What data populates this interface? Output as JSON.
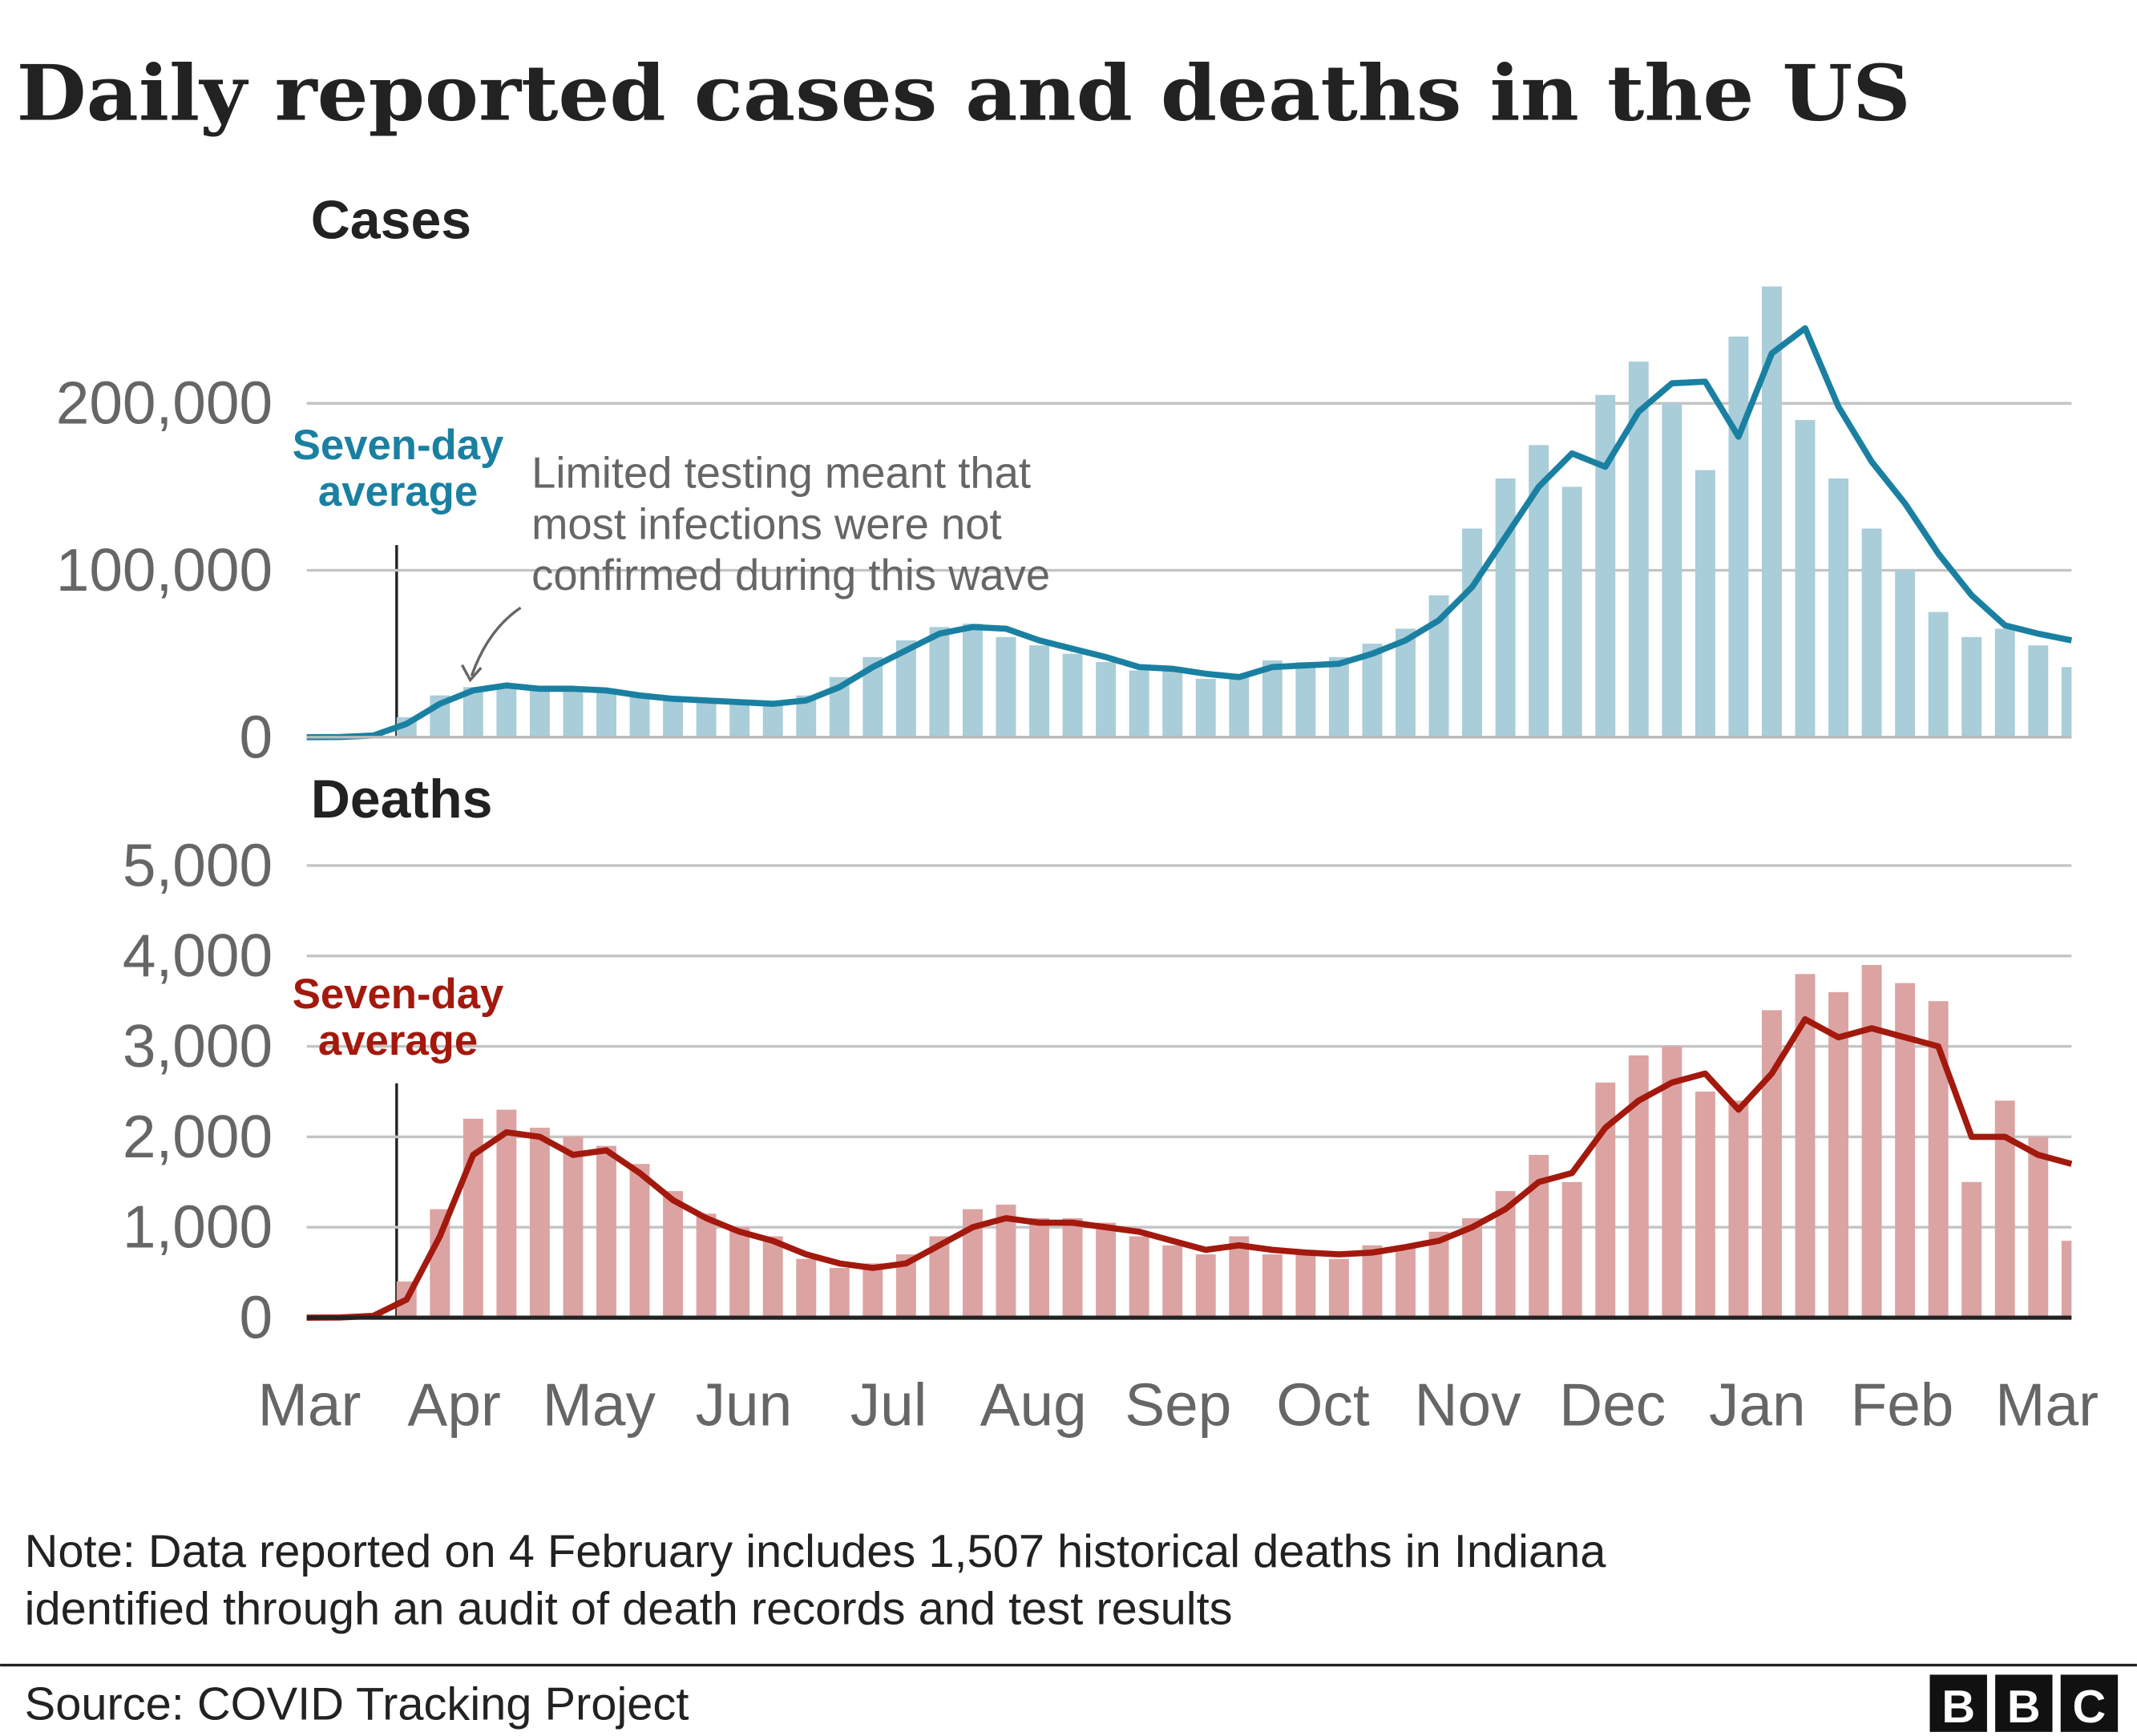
{
  "title": "Daily reported cases and deaths in the US",
  "chart_data": [
    {
      "type": "bar_line",
      "title": "Cases",
      "ylim": [
        0,
        300000
      ],
      "yticks": [
        0,
        {
          "value": 100000,
          "label": "100,000"
        },
        {
          "value": 200000,
          "label": "200,000"
        }
      ],
      "grid": true,
      "series": [
        {
          "type": "bar",
          "color": "#a9cdd9",
          "values": [
            0,
            150,
            1200,
            12000,
            25000,
            30000,
            30000,
            28000,
            30000,
            27000,
            24000,
            23000,
            21000,
            20000,
            21000,
            25000,
            36000,
            48000,
            58000,
            66000,
            68000,
            60000,
            55000,
            50000,
            45000,
            40000,
            42000,
            35000,
            38000,
            46000,
            45000,
            48000,
            56000,
            65000,
            85000,
            125000,
            155000,
            175000,
            150000,
            205000,
            225000,
            200000,
            160000,
            240000,
            270000,
            190000,
            155000,
            125000,
            100000,
            75000,
            60000,
            65000,
            55000,
            42000
          ]
        },
        {
          "type": "line",
          "name": "Seven-day average",
          "color": "#1a80a2",
          "values": [
            0,
            100,
            1000,
            8000,
            20000,
            28000,
            31000,
            29000,
            29000,
            28000,
            25000,
            23000,
            22000,
            21000,
            20000,
            22000,
            30000,
            42000,
            52000,
            62000,
            66000,
            65000,
            58000,
            53000,
            48000,
            42000,
            41000,
            38000,
            36000,
            42000,
            43000,
            44000,
            50000,
            58000,
            70000,
            90000,
            120000,
            150000,
            170000,
            162000,
            195000,
            212000,
            213000,
            180000,
            230000,
            245000,
            198000,
            165000,
            140000,
            110000,
            85000,
            67000,
            62000,
            58000
          ]
        }
      ],
      "annotation": [
        "Limited testing meant that",
        "most infections were not",
        "confirmed during this wave"
      ]
    },
    {
      "type": "bar_line",
      "title": "Deaths",
      "ylim": [
        0,
        5500
      ],
      "yticks": [
        0,
        {
          "value": 1000,
          "label": "1,000"
        },
        {
          "value": 2000,
          "label": "2,000"
        },
        {
          "value": 3000,
          "label": "3,000"
        },
        {
          "value": 4000,
          "label": "4,000"
        },
        {
          "value": 5000,
          "label": "5,000"
        }
      ],
      "grid": true,
      "x_tick_labels": [
        "Mar",
        "Apr",
        "May",
        "Jun",
        "Jul",
        "Aug",
        "Sep",
        "Oct",
        "Nov",
        "Dec",
        "Jan",
        "Feb",
        "Mar"
      ],
      "series": [
        {
          "type": "bar",
          "color": "#dca3a3",
          "values": [
            0,
            5,
            50,
            400,
            1200,
            2200,
            2300,
            2100,
            2000,
            1900,
            1700,
            1400,
            1150,
            1000,
            900,
            650,
            550,
            600,
            700,
            900,
            1200,
            1250,
            1100,
            1100,
            1050,
            900,
            800,
            700,
            900,
            700,
            750,
            650,
            800,
            800,
            950,
            1100,
            1400,
            1800,
            1500,
            2600,
            2900,
            3000,
            2500,
            2400,
            3400,
            3800,
            3600,
            3900,
            3700,
            3500,
            1500,
            2400,
            2000,
            850
          ]
        },
        {
          "type": "line",
          "name": "Seven-day average",
          "color": "#a3190d",
          "values": [
            0,
            2,
            20,
            200,
            900,
            1800,
            2050,
            2000,
            1800,
            1850,
            1600,
            1300,
            1100,
            950,
            850,
            700,
            600,
            550,
            600,
            800,
            1000,
            1100,
            1050,
            1050,
            1000,
            950,
            850,
            750,
            800,
            750,
            720,
            700,
            720,
            780,
            850,
            1000,
            1200,
            1500,
            1600,
            2100,
            2400,
            2600,
            2700,
            2300,
            2700,
            3300,
            3100,
            3200,
            3100,
            3000,
            2000,
            2000,
            1800,
            1700
          ]
        }
      ]
    }
  ],
  "note": [
    "Note: Data reported on 4 February includes 1,507 historical deaths in Indiana",
    "identified through an audit of death records and test results"
  ],
  "source": "Source: COVID Tracking Project",
  "logo": [
    "B",
    "B",
    "C"
  ]
}
